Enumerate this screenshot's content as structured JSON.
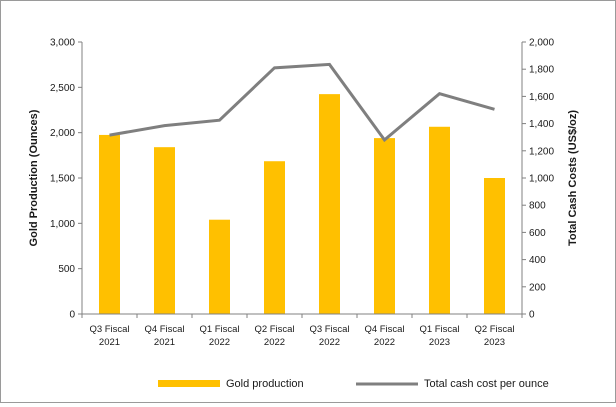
{
  "chart_data": {
    "type": "bar",
    "categories": [
      [
        "Q3 Fiscal",
        "2021"
      ],
      [
        "Q4 Fiscal",
        "2021"
      ],
      [
        "Q1 Fiscal",
        "2022"
      ],
      [
        "Q2 Fiscal",
        "2022"
      ],
      [
        "Q3 Fiscal",
        "2022"
      ],
      [
        "Q4 Fiscal",
        "2022"
      ],
      [
        "Q1 Fiscal",
        "2023"
      ],
      [
        "Q2 Fiscal",
        "2023"
      ]
    ],
    "series": [
      {
        "name": "Gold production",
        "type": "bar",
        "axis": "left",
        "color": "#FFC000",
        "values": [
          1975,
          1840,
          1040,
          1685,
          2425,
          1940,
          2065,
          1500
        ]
      },
      {
        "name": "Total cash cost per ounce",
        "type": "line",
        "axis": "right",
        "color": "#7F7F7F",
        "values": [
          1315,
          1385,
          1425,
          1810,
          1835,
          1280,
          1620,
          1505
        ]
      }
    ],
    "ylabel": "Gold Production (Ounces)",
    "y2label": "Total Cash Costs (US$/oz)",
    "ylim": [
      0,
      3000
    ],
    "y2lim": [
      0,
      2000
    ],
    "yticks": [
      "0",
      "500",
      "1,000",
      "1,500",
      "2,000",
      "2,500",
      "3,000"
    ],
    "y2ticks": [
      "0",
      "200",
      "400",
      "600",
      "800",
      "1,000",
      "1,200",
      "1,400",
      "1,600",
      "1,800",
      "2,000"
    ],
    "ytick_values": [
      0,
      500,
      1000,
      1500,
      2000,
      2500,
      3000
    ],
    "y2tick_values": [
      0,
      200,
      400,
      600,
      800,
      1000,
      1200,
      1400,
      1600,
      1800,
      2000
    ],
    "grid": false,
    "legend": "bottom"
  }
}
